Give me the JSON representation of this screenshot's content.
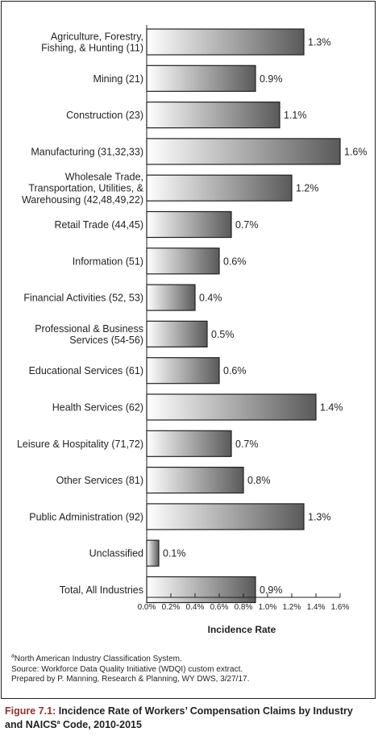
{
  "chart_data": {
    "type": "bar",
    "orientation": "horizontal",
    "categories": [
      [
        "Agriculture, Forestry,",
        "Fishing, & Hunting (11)"
      ],
      [
        "Mining (21)"
      ],
      [
        "Construction (23)"
      ],
      [
        "Manufacturing (31,32,33)"
      ],
      [
        "Wholesale Trade,",
        "Transportation, Utilities, &",
        "Warehousing (42,48,49,22)"
      ],
      [
        "Retail Trade (44,45)"
      ],
      [
        "Information (51)"
      ],
      [
        "Financial Activities (52, 53)"
      ],
      [
        "Professional & Business",
        "Services (54-56)"
      ],
      [
        "Educational Services (61)"
      ],
      [
        "Health Services (62)"
      ],
      [
        "Leisure & Hospitality (71,72)"
      ],
      [
        "Other Services (81)"
      ],
      [
        "Public Administration (92)"
      ],
      [
        "Unclassified"
      ],
      [
        "Total, All Industries"
      ]
    ],
    "values": [
      1.3,
      0.9,
      1.1,
      1.6,
      1.2,
      0.7,
      0.6,
      0.4,
      0.5,
      0.6,
      1.4,
      0.7,
      0.8,
      1.3,
      0.1,
      0.9
    ],
    "value_labels": [
      "1.3%",
      "0.9%",
      "1.1%",
      "1.6%",
      "1.2%",
      "0.7%",
      "0.6%",
      "0.4%",
      "0.5%",
      "0.6%",
      "1.4%",
      "0.7%",
      "0.8%",
      "1.3%",
      "0.1%",
      "0.9%"
    ],
    "xticks": [
      0.0,
      0.2,
      0.4,
      0.6,
      0.8,
      1.0,
      1.2,
      1.4,
      1.6
    ],
    "xtick_labels": [
      "0.0%",
      "0.2%",
      "0.4%",
      "0.6%",
      "0.8%",
      "1.0%",
      "1.2%",
      "1.4%",
      "1.6%"
    ],
    "xlim": [
      0,
      1.6
    ],
    "xlabel": "Incidence Rate",
    "ylabel": "",
    "grid": false,
    "legend": "none",
    "bar_gradient": [
      "#ffffff",
      "#5a5a5a"
    ]
  },
  "footnotes": {
    "note_marker": "a",
    "note_text": "North American Industry Classification System.",
    "source": "Source: Workforce Data Quality Initiative (WDQI) custom extract.",
    "prepared": "Prepared by P. Manning, Research & Planning, WY DWS, 3/27/17."
  },
  "caption": {
    "prefix": "Figure 7.1:",
    "title_part1": "Incidence Rate of Workers’ Compensation Claims by Industry",
    "title_part2_a": "and NAICS",
    "title_sup": "a",
    "title_part2_b": " Code, 2010-2015"
  }
}
